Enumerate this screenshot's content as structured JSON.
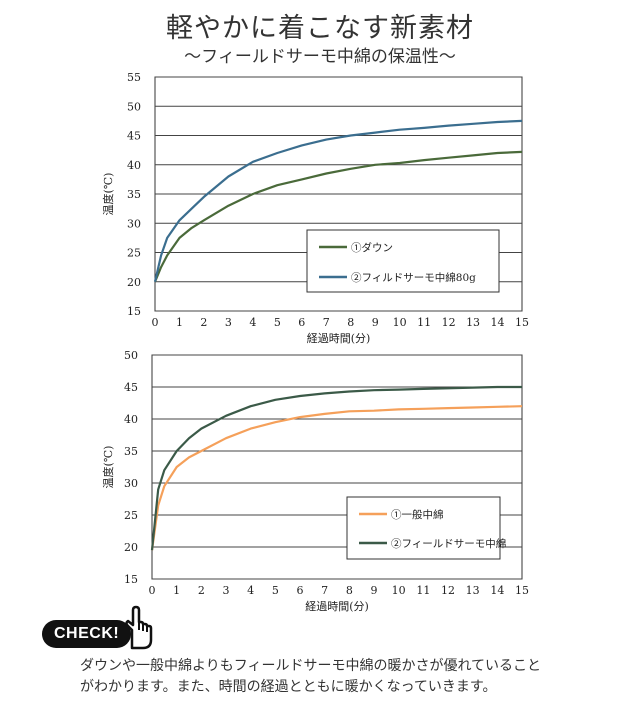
{
  "header": {
    "title": "軽やかに着こなす新素材",
    "subtitle": "～フィールドサーモ中綿の保温性～"
  },
  "chart_data": [
    {
      "type": "line",
      "xlabel": "経過時間(分)",
      "ylabel": "温度(℃)",
      "xlim": [
        0,
        15
      ],
      "ylim": [
        15,
        55
      ],
      "xticks": [
        0,
        1,
        2,
        3,
        4,
        5,
        6,
        7,
        8,
        9,
        10,
        11,
        12,
        13,
        14,
        15
      ],
      "yticks": [
        15,
        20,
        25,
        30,
        35,
        40,
        45,
        50,
        55
      ],
      "grid": "horizontal",
      "legend_position": "lower-right",
      "series": [
        {
          "name": "①ダウン",
          "color": "#4a6a3a",
          "x": [
            0,
            0.25,
            0.5,
            1,
            1.5,
            2,
            3,
            4,
            5,
            6,
            7,
            8,
            9,
            10,
            11,
            12,
            13,
            14,
            15
          ],
          "values": [
            20,
            22.5,
            24.5,
            27.5,
            29.2,
            30.5,
            33,
            35,
            36.5,
            37.5,
            38.5,
            39.3,
            40,
            40.3,
            40.8,
            41.2,
            41.6,
            42,
            42.2
          ]
        },
        {
          "name": "②フィルドサーモ中綿80g",
          "color": "#3b6e8f",
          "x": [
            0,
            0.25,
            0.5,
            1,
            1.5,
            2,
            3,
            4,
            5,
            6,
            7,
            8,
            9,
            10,
            11,
            12,
            13,
            14,
            15
          ],
          "values": [
            20,
            24.5,
            27.5,
            30.5,
            32.5,
            34.5,
            38,
            40.5,
            42,
            43.3,
            44.3,
            45,
            45.5,
            46,
            46.3,
            46.7,
            47,
            47.3,
            47.5
          ]
        }
      ]
    },
    {
      "type": "line",
      "xlabel": "経過時間(分)",
      "ylabel": "温度(℃)",
      "xlim": [
        0,
        15
      ],
      "ylim": [
        15,
        50
      ],
      "xticks": [
        0,
        1,
        2,
        3,
        4,
        5,
        6,
        7,
        8,
        9,
        10,
        11,
        12,
        13,
        14,
        15
      ],
      "yticks": [
        15,
        20,
        25,
        30,
        35,
        40,
        45,
        50
      ],
      "grid": "horizontal",
      "legend_position": "lower-right",
      "series": [
        {
          "name": "①一般中綿",
          "color": "#f5a05a",
          "x": [
            0,
            0.25,
            0.5,
            1,
            1.5,
            2,
            3,
            4,
            5,
            6,
            7,
            8,
            9,
            10,
            11,
            12,
            13,
            14,
            15
          ],
          "values": [
            19.5,
            26.5,
            29.5,
            32.5,
            34,
            35,
            37,
            38.5,
            39.5,
            40.3,
            40.8,
            41.2,
            41.3,
            41.5,
            41.6,
            41.7,
            41.8,
            41.9,
            42
          ]
        },
        {
          "name": "②フィールドサーモ中綿",
          "color": "#3b5a48",
          "x": [
            0,
            0.25,
            0.5,
            1,
            1.5,
            2,
            3,
            4,
            5,
            6,
            7,
            8,
            9,
            10,
            11,
            12,
            13,
            14,
            15
          ],
          "values": [
            19.5,
            29,
            32,
            35,
            37,
            38.5,
            40.5,
            42,
            43,
            43.6,
            44,
            44.3,
            44.5,
            44.6,
            44.7,
            44.8,
            44.9,
            45,
            45
          ]
        }
      ]
    }
  ],
  "check": {
    "badge": "CHECK!",
    "note_line1": "ダウンや一般中綿よりもフィールドサーモ中綿の暖かさが優れていること",
    "note_line2": "がわかります。また、時間の経過とともに暖かくなっていきます。"
  }
}
